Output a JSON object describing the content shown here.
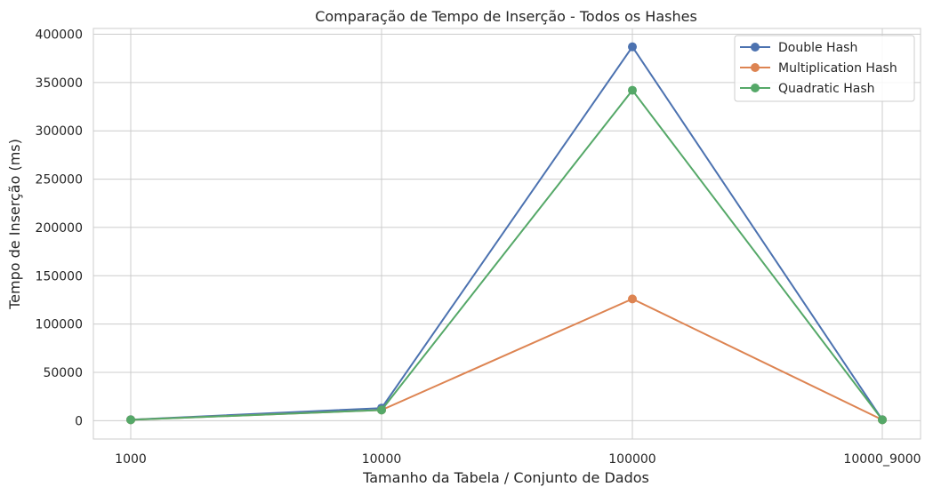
{
  "chart_data": {
    "type": "line",
    "title": "Comparação de Tempo de Inserção - Todos os Hashes",
    "xlabel": "Tamanho da Tabela / Conjunto de Dados",
    "ylabel": "Tempo de Inserção (ms)",
    "categories": [
      "1000",
      "10000",
      "100000",
      "10000_9000"
    ],
    "ylim": [
      -19000,
      406000
    ],
    "yticks": [
      0,
      50000,
      100000,
      150000,
      200000,
      250000,
      300000,
      350000,
      400000
    ],
    "grid": true,
    "legend_position": "top-right",
    "series": [
      {
        "name": "Double Hash",
        "color": "#4c72b0",
        "values": [
          1000,
          13000,
          387000,
          1000
        ]
      },
      {
        "name": "Multiplication Hash",
        "color": "#dd8452",
        "values": [
          900,
          11000,
          126000,
          900
        ]
      },
      {
        "name": "Quadratic Hash",
        "color": "#55a868",
        "values": [
          900,
          11000,
          342000,
          900
        ]
      }
    ]
  }
}
